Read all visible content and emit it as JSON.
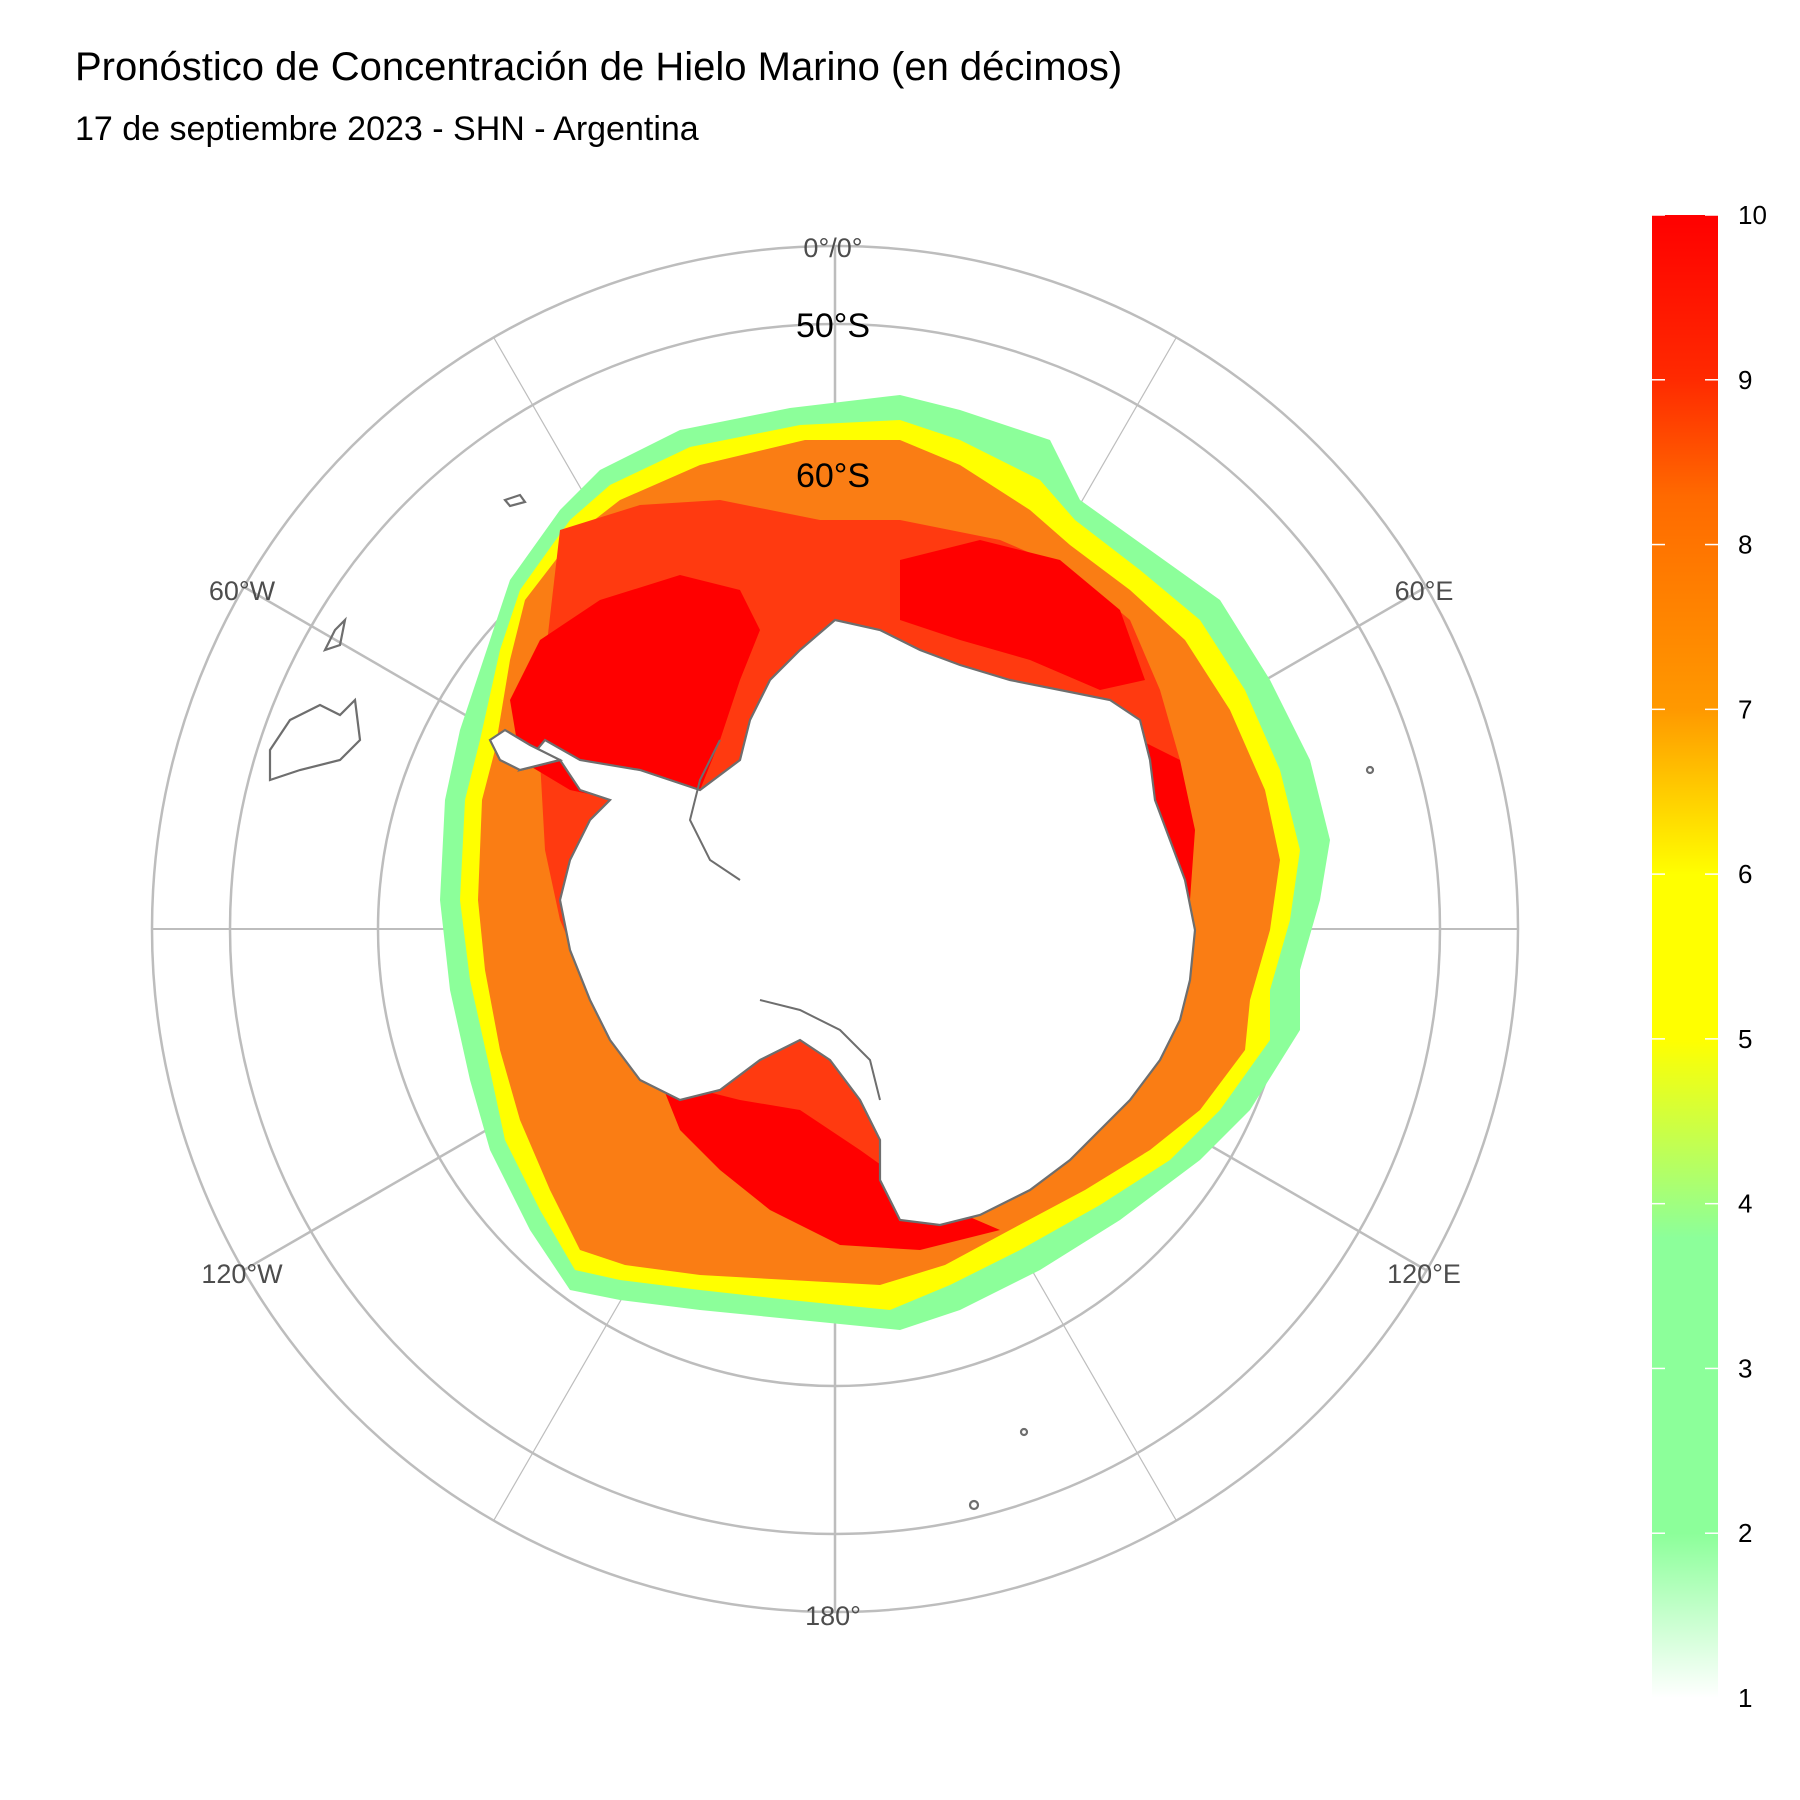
{
  "title": "Pronóstico de Concentración de Hielo Marino (en décimos)",
  "subtitle": "17 de septiembre 2023 - SHN - Argentina",
  "map": {
    "projection": "south-polar-stereographic",
    "longitude_labels": [
      "0°/0°",
      "60°E",
      "120°E",
      "180°",
      "120°W",
      "60°W"
    ],
    "latitude_labels": [
      "50°S",
      "60°S"
    ],
    "grid_color": "#bdbdbd",
    "coast_color": "#6e6e6e"
  },
  "colorbar": {
    "ticks": [
      "1",
      "2",
      "3",
      "4",
      "5",
      "6",
      "7",
      "8",
      "9",
      "10"
    ],
    "range": [
      1,
      10
    ],
    "colors": [
      {
        "value": 1,
        "color": "#ffffff"
      },
      {
        "value": 2,
        "color": "#8cff9a"
      },
      {
        "value": 3.8,
        "color": "#8cff9a"
      },
      {
        "value": 5,
        "color": "#ffff00"
      },
      {
        "value": 6,
        "color": "#ffff00"
      },
      {
        "value": 7,
        "color": "#ff9900"
      },
      {
        "value": 8.3,
        "color": "#ff6a00"
      },
      {
        "value": 9,
        "color": "#ff2a00"
      },
      {
        "value": 10,
        "color": "#ff0000"
      }
    ]
  },
  "ice": {
    "outer_3": "#8cff9a",
    "band_6": "#ffff00",
    "main_8": "#fa7d14",
    "core_9": "#ff3a10",
    "max_10": "#ff0000"
  }
}
